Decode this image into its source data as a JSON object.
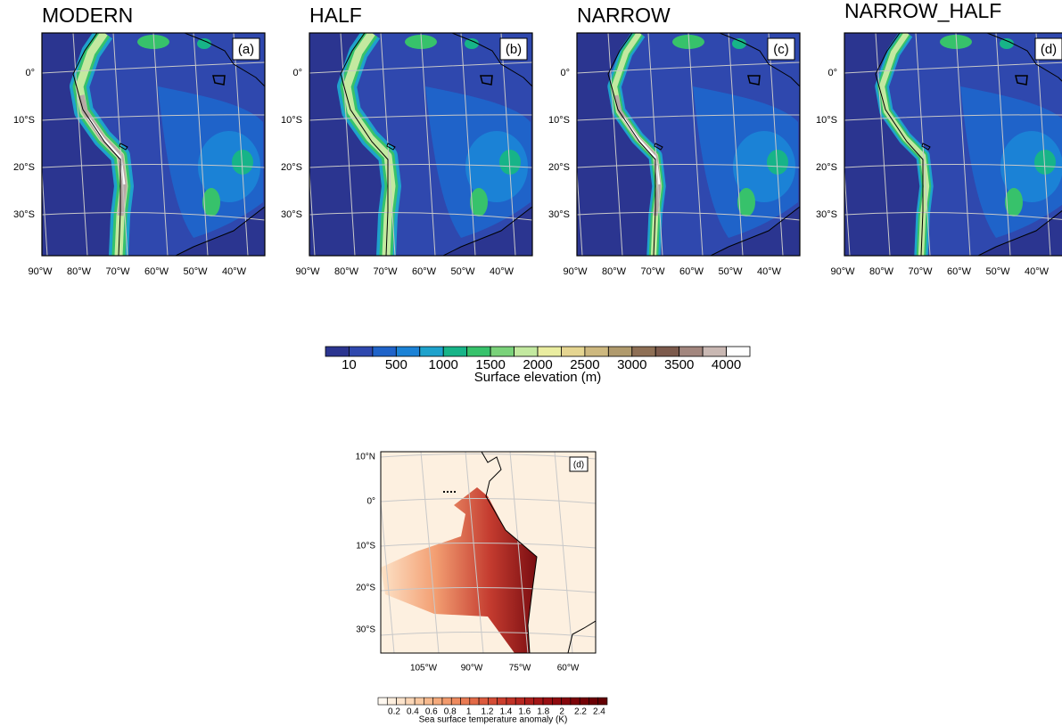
{
  "panels": [
    {
      "title": "MODERN",
      "label": "(a)"
    },
    {
      "title": "HALF",
      "label": "(b)"
    },
    {
      "title": "NARROW",
      "label": "(c)"
    },
    {
      "title": "NARROW_HALF",
      "label": "(d)"
    }
  ],
  "lat_labels": [
    "0°",
    "10°S",
    "20°S",
    "30°S"
  ],
  "lon_labels": [
    "90°W",
    "80°W",
    "70°W",
    "60°W",
    "50°W",
    "40°W"
  ],
  "elevation_colorbar": {
    "colors": [
      "#2b3590",
      "#2f48ae",
      "#1f63c9",
      "#1b82d6",
      "#1ea2cc",
      "#17b488",
      "#37c26b",
      "#7ad27a",
      "#c3e9a0",
      "#eaeda0",
      "#e5d591",
      "#cdb87f",
      "#b09a6d",
      "#8e6f55",
      "#7c5a4c",
      "#a2867e",
      "#c9b8b3",
      "#ffffff"
    ],
    "tick_labels": [
      "10",
      "500",
      "1000",
      "1500",
      "2000",
      "2500",
      "3000",
      "3500",
      "4000"
    ],
    "title": "Surface elevation (m)"
  },
  "sst_map": {
    "label": "(d)",
    "lat_labels": [
      "10°N",
      "0°",
      "10°S",
      "20°S",
      "30°S"
    ],
    "lon_labels": [
      "105°W",
      "90°W",
      "75°W",
      "60°W"
    ]
  },
  "sst_colorbar": {
    "colors": [
      "#fff8f0",
      "#fdeedd",
      "#fce3cb",
      "#fbd6b6",
      "#f9c8a1",
      "#f7b98d",
      "#f5aa7c",
      "#f29a6c",
      "#ee8a5e",
      "#e97a52",
      "#e36a47",
      "#dc5a3d",
      "#d44c35",
      "#cb3e2d",
      "#c13226",
      "#b72720",
      "#ad1e1b",
      "#a31616",
      "#990f12",
      "#8f0a0e",
      "#85060b",
      "#7c0308",
      "#730106",
      "#6b0004",
      "#630002"
    ],
    "tick_labels": [
      "0.2",
      "0.4",
      "0.6",
      "0.8",
      "1",
      "1.2",
      "1.4",
      "1.6",
      "1.8",
      "2",
      "2.2",
      "2.4"
    ],
    "title": "Sea surface temperature anomaly (K)"
  }
}
